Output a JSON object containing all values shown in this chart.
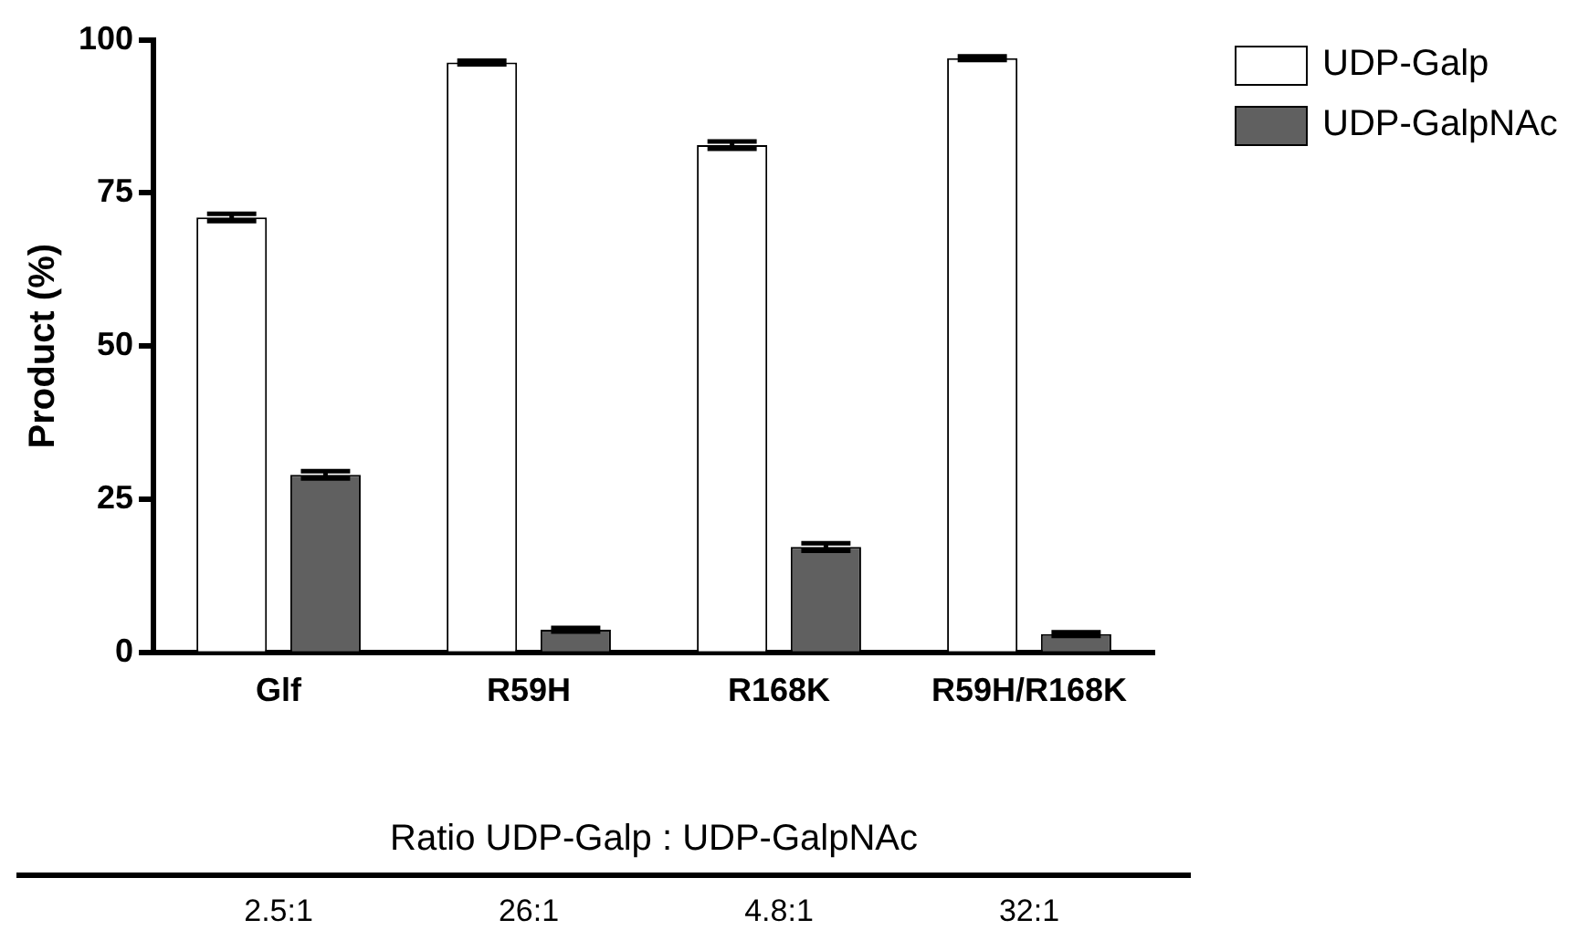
{
  "chart_data": {
    "type": "bar",
    "ylabel": "Product (%)",
    "categories": [
      "Glf",
      "R59H",
      "R168K",
      "R59H/R168K"
    ],
    "series": [
      {
        "name": "UDP-Galp",
        "color": "#ffffff",
        "values": [
          71,
          96.3,
          82.8,
          97
        ],
        "errors": [
          0.6,
          0.3,
          0.6,
          0.3
        ]
      },
      {
        "name": "UDP-GalpNAc",
        "color": "#606060",
        "values": [
          29,
          3.7,
          17.2,
          3
        ],
        "errors": [
          0.6,
          0.3,
          0.6,
          0.3
        ]
      }
    ],
    "ylim": [
      0,
      100
    ],
    "yticks": [
      0,
      25,
      50,
      75,
      100
    ],
    "grid": false,
    "legend": "top right",
    "annotations": [
      "Ratio UDP-Galp : UDP-GalpNAc",
      "2.5:1",
      "26:1",
      "4.8:1",
      "32:1"
    ]
  }
}
